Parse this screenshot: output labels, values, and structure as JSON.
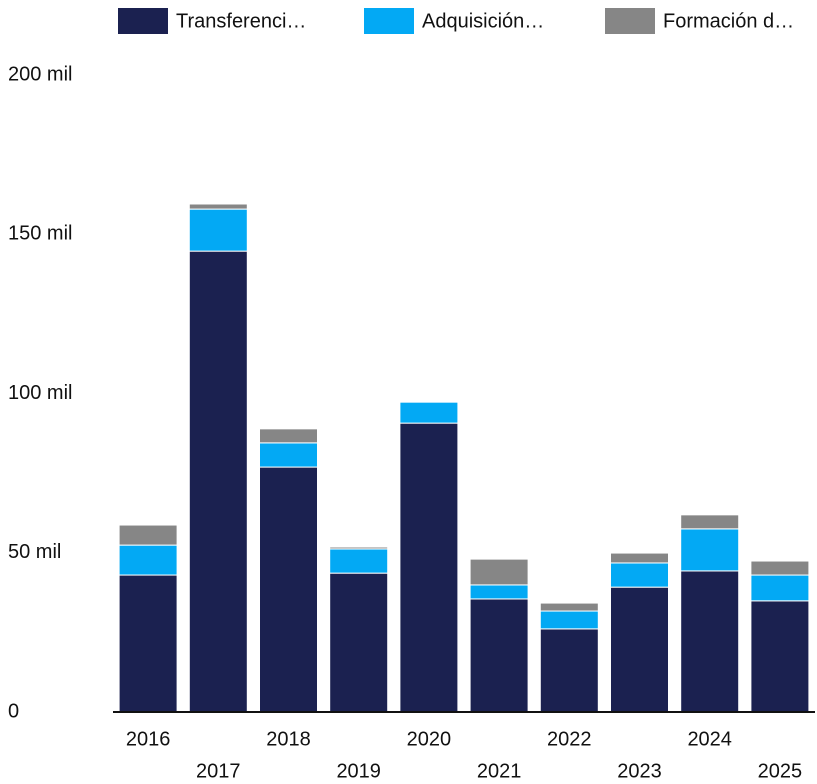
{
  "chart_data": {
    "type": "stacked_bar",
    "categories": [
      "2016",
      "2017",
      "2018",
      "2019",
      "2020",
      "2021",
      "2022",
      "2023",
      "2024",
      "2025"
    ],
    "series": [
      {
        "name": "Transferenci…",
        "color": "#1b2150",
        "values": [
          43000,
          144700,
          76900,
          43600,
          90700,
          35500,
          26100,
          39200,
          44300,
          34900
        ]
      },
      {
        "name": "Adquisición…",
        "color": "#03a9f4",
        "values": [
          9400,
          13200,
          7600,
          7600,
          6600,
          4400,
          5600,
          7600,
          13200,
          8100
        ]
      },
      {
        "name": "Formación d…",
        "color": "#868686",
        "values": [
          6300,
          1600,
          4400,
          600,
          300,
          8100,
          2500,
          3100,
          4400,
          4400
        ]
      }
    ],
    "ylim": [
      0,
      200000
    ],
    "yticks": [
      0,
      {
        "value": 50000,
        "label": "50 mil"
      },
      {
        "value": 100000,
        "label": "100 mil"
      },
      {
        "value": 150000,
        "label": "150 mil"
      },
      {
        "value": 200000,
        "label": "200 mil"
      }
    ],
    "grid": false,
    "legend": "top"
  }
}
